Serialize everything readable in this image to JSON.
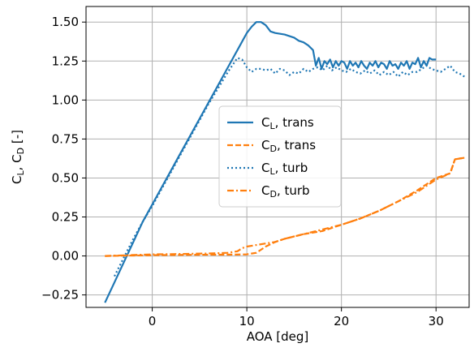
{
  "chart_data": {
    "type": "line",
    "xlabel": "AOA [deg]",
    "ylabel": "C",
    "ylabel_parts": {
      "a": "C",
      "a_sub": "L",
      "sep": ", ",
      "b": "C",
      "b_sub": "D",
      "unit": " [-]"
    },
    "xlim": [
      -7,
      33.5
    ],
    "ylim": [
      -0.33,
      1.6
    ],
    "xticks": [
      0,
      10,
      20,
      30
    ],
    "xtick_labels": [
      "0",
      "10",
      "20",
      "30"
    ],
    "yticks": [
      -0.25,
      0.0,
      0.25,
      0.5,
      0.75,
      1.0,
      1.25,
      1.5
    ],
    "ytick_labels": [
      "−0.25",
      "0.00",
      "0.25",
      "0.50",
      "0.75",
      "1.00",
      "1.25",
      "1.50"
    ],
    "grid": true,
    "legend_position": "center",
    "colors": {
      "blue": "#1f77b4",
      "orange": "#ff7f0e",
      "grid": "#b0b0b0"
    },
    "series": [
      {
        "name": "C_L, trans",
        "label_main": "C",
        "label_sub": "L",
        "label_rest": ", trans",
        "color": "#1f77b4",
        "style": "solid",
        "x": [
          -5,
          -4,
          -3,
          -2,
          -1,
          0,
          1,
          2,
          3,
          4,
          5,
          6,
          7,
          8,
          9,
          10,
          10.5,
          11,
          11.5,
          12,
          12.5,
          13,
          14,
          15,
          15.5,
          16,
          16.5,
          17,
          17.3,
          17.6,
          17.9,
          18.2,
          18.5,
          18.8,
          19.1,
          19.4,
          19.7,
          20,
          20.3,
          20.6,
          20.9,
          21.2,
          21.5,
          21.8,
          22.1,
          22.4,
          22.7,
          23,
          23.3,
          23.6,
          23.9,
          24.2,
          24.5,
          24.8,
          25.1,
          25.4,
          25.7,
          26,
          26.3,
          26.6,
          26.9,
          27.2,
          27.5,
          27.8,
          28.1,
          28.4,
          28.7,
          29,
          29.3,
          29.6,
          30
        ],
        "y": [
          -0.3,
          -0.17,
          -0.04,
          0.09,
          0.22,
          0.33,
          0.44,
          0.55,
          0.66,
          0.77,
          0.88,
          0.99,
          1.1,
          1.21,
          1.32,
          1.43,
          1.47,
          1.5,
          1.5,
          1.48,
          1.44,
          1.43,
          1.42,
          1.4,
          1.38,
          1.37,
          1.35,
          1.32,
          1.22,
          1.27,
          1.2,
          1.25,
          1.23,
          1.26,
          1.21,
          1.25,
          1.22,
          1.25,
          1.24,
          1.2,
          1.25,
          1.22,
          1.24,
          1.21,
          1.25,
          1.22,
          1.2,
          1.24,
          1.22,
          1.25,
          1.21,
          1.24,
          1.23,
          1.2,
          1.25,
          1.22,
          1.23,
          1.2,
          1.24,
          1.22,
          1.25,
          1.2,
          1.24,
          1.23,
          1.27,
          1.21,
          1.25,
          1.22,
          1.27,
          1.26,
          1.26
        ]
      },
      {
        "name": "C_D, trans",
        "label_main": "C",
        "label_sub": "D",
        "label_rest": ", trans",
        "color": "#ff7f0e",
        "style": "dashed",
        "x": [
          -5,
          -3,
          -1,
          0,
          2,
          4,
          6,
          8,
          10,
          11,
          12,
          13,
          14,
          16,
          18,
          20,
          22,
          24,
          26,
          28,
          30,
          31.5,
          32,
          33
        ],
        "y": [
          0.0,
          0.002,
          0.004,
          0.005,
          0.006,
          0.007,
          0.008,
          0.008,
          0.01,
          0.02,
          0.06,
          0.09,
          0.11,
          0.14,
          0.16,
          0.2,
          0.24,
          0.29,
          0.35,
          0.42,
          0.5,
          0.53,
          0.62,
          0.63
        ]
      },
      {
        "name": "C_L, turb",
        "label_main": "C",
        "label_sub": "L",
        "label_rest": ", turb",
        "color": "#1f77b4",
        "style": "dotted",
        "x": [
          -4,
          -3,
          -2,
          -1,
          0,
          1,
          2,
          3,
          4,
          5,
          6,
          7,
          8,
          9,
          9.5,
          10,
          10.5,
          11,
          11.5,
          12,
          12.5,
          13,
          13.5,
          14,
          14.5,
          15,
          15.5,
          16,
          16.5,
          17,
          17.5,
          18,
          18.5,
          19,
          19.5,
          20,
          20.5,
          21,
          21.5,
          22,
          22.5,
          23,
          23.5,
          24,
          24.5,
          25,
          25.5,
          26,
          26.5,
          27,
          27.5,
          28,
          28.5,
          29,
          29.5,
          30,
          30.5,
          31,
          31.5,
          32,
          32.5,
          33
        ],
        "y": [
          -0.13,
          -0.01,
          0.11,
          0.22,
          0.32,
          0.43,
          0.54,
          0.65,
          0.76,
          0.87,
          0.98,
          1.08,
          1.18,
          1.27,
          1.26,
          1.21,
          1.18,
          1.2,
          1.2,
          1.19,
          1.2,
          1.17,
          1.2,
          1.19,
          1.16,
          1.18,
          1.17,
          1.2,
          1.18,
          1.2,
          1.21,
          1.19,
          1.22,
          1.19,
          1.21,
          1.19,
          1.18,
          1.2,
          1.18,
          1.17,
          1.19,
          1.17,
          1.19,
          1.16,
          1.18,
          1.16,
          1.18,
          1.15,
          1.18,
          1.16,
          1.18,
          1.18,
          1.2,
          1.22,
          1.2,
          1.19,
          1.18,
          1.2,
          1.22,
          1.18,
          1.17,
          1.15
        ]
      },
      {
        "name": "C_D, turb",
        "label_main": "C",
        "label_sub": "D",
        "label_rest": ", turb",
        "color": "#ff7f0e",
        "style": "dashdot",
        "x": [
          -5,
          -3,
          -1,
          0,
          2,
          4,
          6,
          8,
          9,
          9.5,
          10,
          11,
          12,
          13,
          14,
          16,
          18,
          20,
          22,
          24,
          26,
          28,
          30,
          31.5,
          32,
          33
        ],
        "y": [
          0.0,
          0.004,
          0.008,
          0.01,
          0.012,
          0.014,
          0.016,
          0.02,
          0.03,
          0.05,
          0.06,
          0.07,
          0.08,
          0.09,
          0.11,
          0.14,
          0.17,
          0.2,
          0.24,
          0.29,
          0.35,
          0.41,
          0.49,
          0.53,
          0.62,
          0.63
        ]
      }
    ]
  }
}
